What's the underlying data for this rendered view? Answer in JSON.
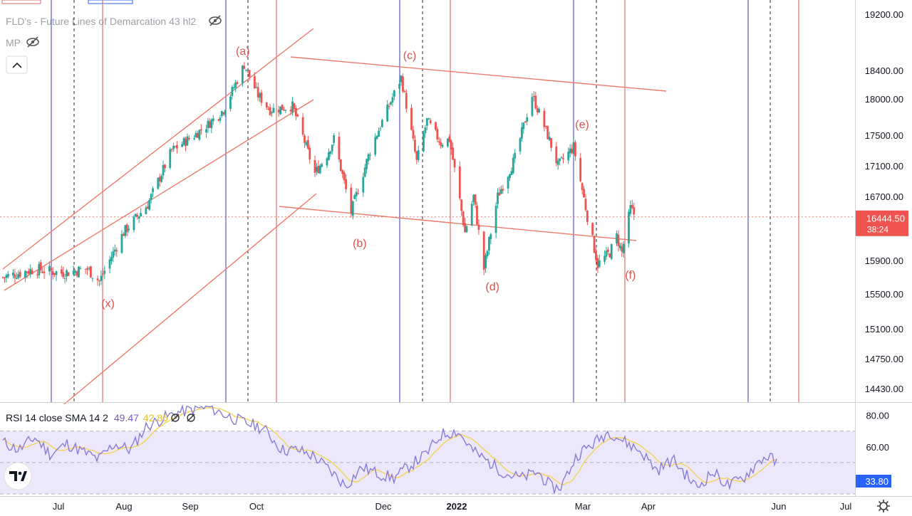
{
  "indicators": {
    "fld_label": "FLD's - Future Lines of Demarcation 43 hl2",
    "mp_label": "MP"
  },
  "price_badge": {
    "price": "16444.50",
    "countdown": "38:24"
  },
  "rsi_label": {
    "name": "RSI 14 close SMA 14 2",
    "rsi": "49.47",
    "sma": "42.86",
    "badge": "33.80"
  },
  "colors": {
    "up": "#26a69a",
    "down": "#ef5350",
    "channel": "#ef7a6a",
    "cycle_blue": "#5b57c9",
    "cycle_red": "#e26e6e",
    "rsi": "#8b7bd8",
    "rsi_sma": "#f2d24a",
    "rsi_band": "#ede7fb",
    "wave_label": "#d9534f"
  },
  "chart_data": [
    {
      "type": "candlestick",
      "instrument_overlay": "FLD's - Future Lines of Demarcation 43 hl2",
      "x_tick_labels": [
        "Jul",
        "Aug",
        "Sep",
        "Oct",
        "Dec",
        "2022",
        "Feb",
        "Mar",
        "Apr",
        "Jun",
        "Jul"
      ],
      "y_tick_labels": [
        "19200.00",
        "18400.00",
        "18000.00",
        "17500.00",
        "17100.00",
        "16700.00",
        "15900.00",
        "15500.00",
        "15100.00",
        "14750.00",
        "14430.00"
      ],
      "ylim": [
        14300,
        19350
      ],
      "last_price": 16444.5,
      "wave_labels": [
        "(a)",
        "(b)",
        "(c)",
        "(d)",
        "(e)",
        "(f)",
        "(x)"
      ],
      "anchor_points": [
        {
          "date": "2021-06-01",
          "close": 15700
        },
        {
          "date": "2021-06-20",
          "close": 15800
        },
        {
          "date": "2021-07-05",
          "close": 15750
        },
        {
          "date": "2021-07-20",
          "close": 15800
        },
        {
          "date": "2021-07-27",
          "close": 15650
        },
        {
          "date": "2021-08-10",
          "close": 16250
        },
        {
          "date": "2021-08-24",
          "close": 16600
        },
        {
          "date": "2021-09-07",
          "close": 17300
        },
        {
          "date": "2021-09-20",
          "close": 17500
        },
        {
          "date": "2021-09-28",
          "close": 17650
        },
        {
          "date": "2021-10-07",
          "close": 17850
        },
        {
          "date": "2021-10-19",
          "close": 18480
        },
        {
          "date": "2021-10-27",
          "close": 18050
        },
        {
          "date": "2021-11-03",
          "close": 17850
        },
        {
          "date": "2021-11-16",
          "close": 17900
        },
        {
          "date": "2021-11-29",
          "close": 17000
        },
        {
          "date": "2021-12-06",
          "close": 17250
        },
        {
          "date": "2021-12-10",
          "close": 17450
        },
        {
          "date": "2021-12-20",
          "close": 16500
        },
        {
          "date": "2021-12-31",
          "close": 17300
        },
        {
          "date": "2022-01-18",
          "close": 18300
        },
        {
          "date": "2022-01-27",
          "close": 17150
        },
        {
          "date": "2022-02-02",
          "close": 17700
        },
        {
          "date": "2022-02-10",
          "close": 17400
        },
        {
          "date": "2022-02-15",
          "close": 17450
        },
        {
          "date": "2022-02-24",
          "close": 16250
        },
        {
          "date": "2022-03-01",
          "close": 16700
        },
        {
          "date": "2022-03-07",
          "close": 15800
        },
        {
          "date": "2022-03-15",
          "close": 16700
        },
        {
          "date": "2022-03-25",
          "close": 17200
        },
        {
          "date": "2022-04-04",
          "close": 18050
        },
        {
          "date": "2022-04-13",
          "close": 17500
        },
        {
          "date": "2022-04-19",
          "close": 17100
        },
        {
          "date": "2022-04-28",
          "close": 17350
        },
        {
          "date": "2022-05-06",
          "close": 16450
        },
        {
          "date": "2022-05-12",
          "close": 15850
        },
        {
          "date": "2022-05-19",
          "close": 16000
        },
        {
          "date": "2022-05-23",
          "close": 16200
        },
        {
          "date": "2022-05-26",
          "close": 16000
        },
        {
          "date": "2022-05-31",
          "close": 16550
        },
        {
          "date": "2022-06-03",
          "close": 16444.5
        }
      ]
    },
    {
      "type": "line",
      "title": "RSI 14 close SMA 14 2",
      "y_tick_labels": [
        "80.00",
        "60.00",
        "40.00"
      ],
      "ylim": [
        30,
        88
      ],
      "band": [
        30,
        70
      ],
      "midline": 50,
      "series": [
        {
          "name": "RSI",
          "last": 49.47
        },
        {
          "name": "SMA",
          "last": 42.86
        }
      ],
      "rsi_anchor_points": [
        [
          0,
          63
        ],
        [
          0.02,
          58
        ],
        [
          0.04,
          66
        ],
        [
          0.06,
          55
        ],
        [
          0.08,
          62
        ],
        [
          0.1,
          57
        ],
        [
          0.12,
          52
        ],
        [
          0.14,
          62
        ],
        [
          0.16,
          58
        ],
        [
          0.18,
          73
        ],
        [
          0.2,
          78
        ],
        [
          0.22,
          82
        ],
        [
          0.24,
          84
        ],
        [
          0.26,
          85
        ],
        [
          0.28,
          80
        ],
        [
          0.3,
          76
        ],
        [
          0.32,
          73
        ],
        [
          0.33,
          70
        ],
        [
          0.35,
          58
        ],
        [
          0.37,
          58
        ],
        [
          0.39,
          54
        ],
        [
          0.41,
          45
        ],
        [
          0.43,
          35
        ],
        [
          0.45,
          47
        ],
        [
          0.47,
          43
        ],
        [
          0.49,
          40
        ],
        [
          0.51,
          48
        ],
        [
          0.53,
          55
        ],
        [
          0.55,
          68
        ],
        [
          0.57,
          70
        ],
        [
          0.59,
          57
        ],
        [
          0.61,
          50
        ],
        [
          0.63,
          43
        ],
        [
          0.65,
          40
        ],
        [
          0.67,
          44
        ],
        [
          0.69,
          33
        ],
        [
          0.7,
          35
        ],
        [
          0.72,
          55
        ],
        [
          0.74,
          62
        ],
        [
          0.76,
          70
        ],
        [
          0.78,
          63
        ],
        [
          0.8,
          57
        ],
        [
          0.82,
          45
        ],
        [
          0.84,
          52
        ],
        [
          0.86,
          40
        ],
        [
          0.87,
          34
        ],
        [
          0.89,
          44
        ],
        [
          0.91,
          35
        ],
        [
          0.93,
          41
        ],
        [
          0.95,
          52
        ],
        [
          0.96,
          54
        ],
        [
          0.97,
          49.47
        ]
      ]
    }
  ]
}
